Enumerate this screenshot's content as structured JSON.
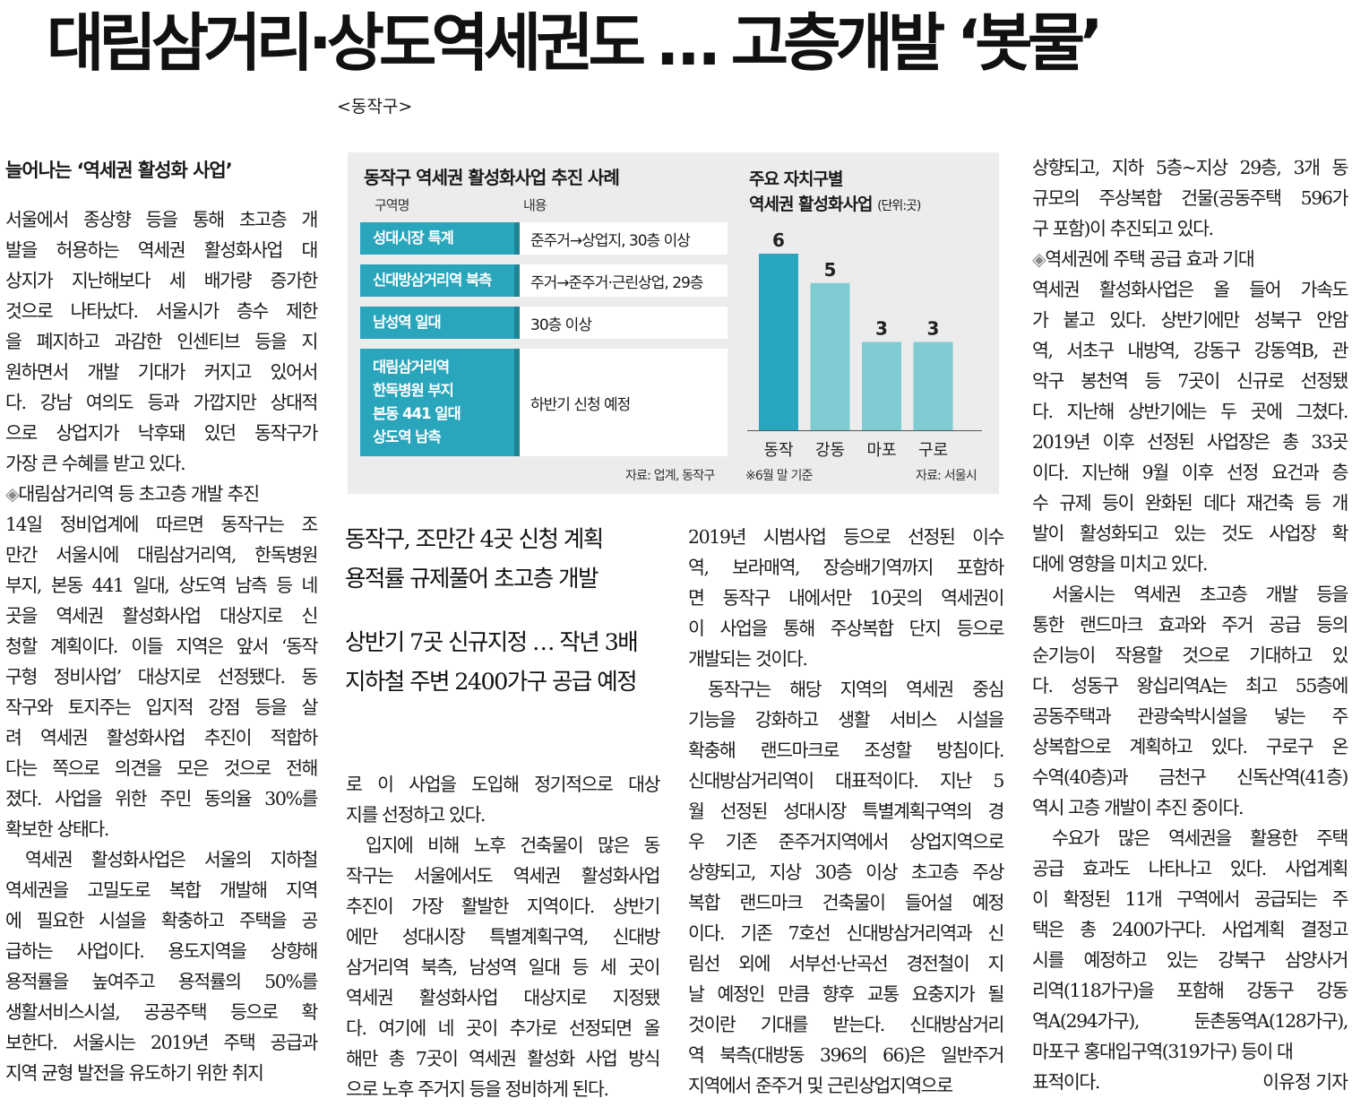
{
  "headline": "대림삼거리·상도역세권도 … 고층개발 ‘봇물’",
  "region_tag": "<동작구>",
  "col1": {
    "subhead": "늘어나는 ‘역세권 활성화 사업’",
    "p1": [
      "서울에서 종상향 등을 통해 초고층 개",
      "발을 허용하는 역세권 활성화사업 대",
      "상지가 지난해보다 세 배가량 증가한",
      "것으로 나타났다. 서울시가 층수 제한",
      "을 폐지하고 과감한 인센티브 등을 지",
      "원하면서 개발 기대가 커지고 있어서",
      "다. 강남 여의도 등과 가깝지만 상대적",
      "으로 상업지가 낙후돼 있던 동작구가",
      "가장 큰 수혜를 받고 있다."
    ],
    "minihead_marker": "◈",
    "minihead": "대림삼거리역 등 초고층 개발 추진",
    "p2": [
      "14일 정비업계에 따르면 동작구는 조",
      "만간 서울시에 대림삼거리역, 한독병원",
      "부지, 본동 441 일대, 상도역 남측 등 네",
      "곳을 역세권 활성화사업 대상지로 신",
      "청할 계획이다. 이들 지역은 앞서 ‘동작",
      "구형 정비사업’ 대상지로 선정됐다. 동",
      "작구와 토지주는 입지적 강점 등을 살",
      "려 역세권 활성화사업 추진이 적합하",
      "다는 쪽으로 의견을 모은 것으로 전해",
      "졌다. 사업을 위한 주민 동의율 30%를",
      "확보한 상태다."
    ],
    "p3": [
      "역세권 활성화사업은 서울의 지하철",
      "역세권을 고밀도로 복합 개발해 지역",
      "에 필요한 시설을 확충하고 주택을 공",
      "급하는 사업이다. 용도지역을 상향해",
      "용적률을 높여주고 용적률의 50%를",
      "생활서비스시설, 공공주택 등으로 확",
      "보한다. 서울시는 2019년 주택 공급과",
      "지역 균형 발전을 유도하기 위한 취지"
    ]
  },
  "infobox": {
    "title": "동작구 역세권 활성화사업 추진 사례",
    "col_name": "구역명",
    "col_desc": "내용",
    "rows": [
      {
        "name": [
          "성대시장 특계"
        ],
        "desc": "준주거→상업지, 30층 이상"
      },
      {
        "name": [
          "신대방삼거리역 북측"
        ],
        "desc": "주거→준주거·근린상업, 29층"
      },
      {
        "name": [
          "남성역 일대"
        ],
        "desc": "30층 이상"
      },
      {
        "name": [
          "대림삼거리역",
          "한독병원 부지",
          "본동 441 일대",
          "상도역 남측"
        ],
        "desc": "하반기 신청 예정"
      }
    ],
    "source": "자료: 업계, 동작구"
  },
  "chart_data": {
    "type": "bar",
    "title": "주요 자치구별 역세권 활성화사업",
    "title_lines": [
      "주요 자치구별",
      "역세권 활성화사업"
    ],
    "unit": "(단위:곳)",
    "categories": [
      "동작",
      "강동",
      "마포",
      "구로"
    ],
    "values": [
      6,
      5,
      3,
      3
    ],
    "colors": [
      "#27a6be",
      "#7fcbd2",
      "#7fcbd2",
      "#7fcbd2"
    ],
    "ylim": [
      0,
      6
    ],
    "note": "※6월 말 기준",
    "source": "자료: 서울시"
  },
  "deck": {
    "line1": "동작구, 조만간 4곳 신청 계획",
    "line2": "용적률 규제풀어 초고층 개발",
    "line3": "상반기 7곳 신규지정 … 작년 3배",
    "line4": "지하철 주변 2400가구 공급 예정"
  },
  "col2": {
    "p1": [
      "로 이 사업을 도입해 정기적으로 대상",
      "지를 선정하고 있다."
    ],
    "p2": [
      "입지에 비해 노후 건축물이 많은 동",
      "작구는 서울에서도 역세권 활성화사업",
      "추진이 가장 활발한 지역이다. 상반기",
      "에만 성대시장 특별계획구역, 신대방",
      "삼거리역 북측, 남성역 일대 등 세 곳이",
      "역세권 활성화사업 대상지로 지정됐",
      "다. 여기에 네 곳이 추가로 선정되면 올",
      "해만 총 7곳이 역세권 활성화 사업 방식",
      "으로 노후 주거지 등을 정비하게 된다."
    ]
  },
  "col3": {
    "p1": [
      "2019년 시범사업 등으로 선정된 이수",
      "역, 보라매역, 장승배기역까지 포함하",
      "면 동작구 내에서만 10곳의 역세권이",
      "이 사업을 통해 주상복합 단지 등으로",
      "개발되는 것이다."
    ],
    "p2": [
      "동작구는 해당 지역의 역세권 중심",
      "기능을 강화하고 생활 서비스 시설을",
      "확충해 랜드마크로 조성할 방침이다.",
      "신대방삼거리역이 대표적이다. 지난 5",
      "월 선정된 성대시장 특별계획구역의 경",
      "우 기존 준주거지역에서 상업지역으로",
      "상향되고, 지상 30층 이상 초고층 주상",
      "복합 랜드마크 건축물이 들어설 예정",
      "이다. 기존 7호선 신대방삼거리역과 신",
      "림선 외에 서부선·난곡선 경전철이 지",
      "날 예정인 만큼 향후 교통 요충지가 될",
      "것이란 기대를 받는다. 신대방삼거리",
      "역 북측(대방동 396의 66)은 일반주거",
      "지역에서 준주거 및 근린상업지역으로"
    ]
  },
  "col4": {
    "p1": [
      "상향되고, 지하 5층~지상 29층, 3개 동",
      "규모의 주상복합 건물(공동주택 596가",
      "구 포함)이 추진되고 있다."
    ],
    "minihead_marker": "◈",
    "minihead": "역세권에 주택 공급 효과 기대",
    "p2": [
      "역세권 활성화사업은 올 들어 가속도",
      "가 붙고 있다. 상반기에만 성북구 안암",
      "역, 서초구 내방역, 강동구 강동역B, 관",
      "악구 봉천역 등 7곳이 신규로 선정됐",
      "다. 지난해 상반기에는 두 곳에 그쳤다.",
      "2019년 이후 선정된 사업장은 총 33곳",
      "이다. 지난해 9월 이후 선정 요건과 층",
      "수 규제 등이 완화된 데다 재건축 등 개",
      "발이 활성화되고 있는 것도 사업장 확",
      "대에 영향을 미치고 있다."
    ],
    "p3": [
      "서울시는 역세권 초고층 개발 등을",
      "통한 랜드마크 효과와 주거 공급 등의",
      "순기능이 작용할 것으로 기대하고 있",
      "다. 성동구 왕십리역A는 최고 55층에",
      "공동주택과 관광숙박시설을 넣는 주",
      "상복합으로 계획하고 있다. 구로구 온",
      "수역(40층)과 금천구 신독산역(41층)",
      "역시 고층 개발이 추진 중이다."
    ],
    "p4": [
      "수요가 많은 역세권을 활용한 주택",
      "공급 효과도 나타나고 있다. 사업계획",
      "이 확정된 11개 구역에서 공급되는 주",
      "택은 총 2400가구다. 사업계획 결정고",
      "시를 예정하고 있는 강북구 삼양사거",
      "리역(118가구)을 포함해 강동구 강동",
      "역A(294가구), 둔촌동역A(128가구),",
      "마포구 홍대입구역(319가구) 등이 대"
    ],
    "last": "표적이다.",
    "author": "이유정 기자"
  }
}
